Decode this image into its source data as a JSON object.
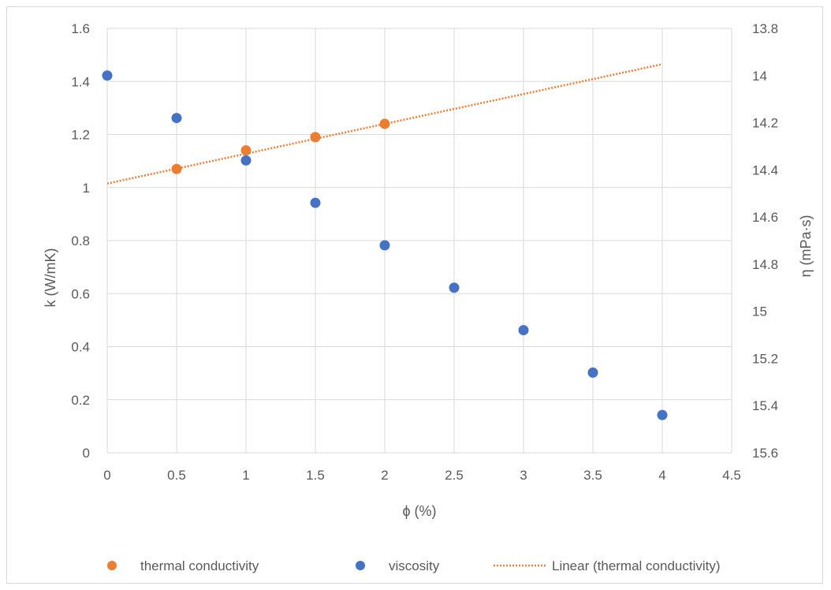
{
  "chart_data": {
    "type": "scatter",
    "x": {
      "label": "ϕ (%)",
      "lim": [
        0,
        4.5
      ],
      "ticks": [
        "0",
        "0.5",
        "1",
        "1.5",
        "2",
        "2.5",
        "3",
        "3.5",
        "4",
        "4.5"
      ]
    },
    "y_left": {
      "label": "k (W/mK)",
      "lim": [
        0,
        1.6
      ],
      "ticks": [
        "0",
        "0.2",
        "0.4",
        "0.6",
        "0.8",
        "1",
        "1.2",
        "1.4",
        "1.6"
      ]
    },
    "y_right": {
      "label": "η (mPa·s)",
      "lim": [
        13.8,
        15.6
      ],
      "inverted": true,
      "ticks": [
        "13.8",
        "14",
        "14.2",
        "14.4",
        "14.6",
        "14.8",
        "15",
        "15.2",
        "15.4",
        "15.6"
      ]
    },
    "grid": true,
    "legend_position": "bottom",
    "series": [
      {
        "name": "thermal conductivity",
        "axis": "left",
        "color": "#ed7d31",
        "x": [
          0.5,
          1,
          1.5,
          2
        ],
        "y": [
          1.07,
          1.14,
          1.19,
          1.24
        ]
      },
      {
        "name": "viscosity",
        "axis": "right",
        "color": "#4472c4",
        "x": [
          0,
          0.5,
          1,
          1.5,
          2,
          2.5,
          3,
          3.5,
          4
        ],
        "y": [
          14.0,
          14.18,
          14.36,
          14.54,
          14.72,
          14.9,
          15.08,
          15.26,
          15.44
        ]
      }
    ],
    "trendline": {
      "name": "Linear (thermal conductivity)",
      "color": "#ed7d31",
      "style": "dotted",
      "x": [
        0,
        4
      ],
      "y": [
        1.015,
        1.465
      ]
    }
  }
}
